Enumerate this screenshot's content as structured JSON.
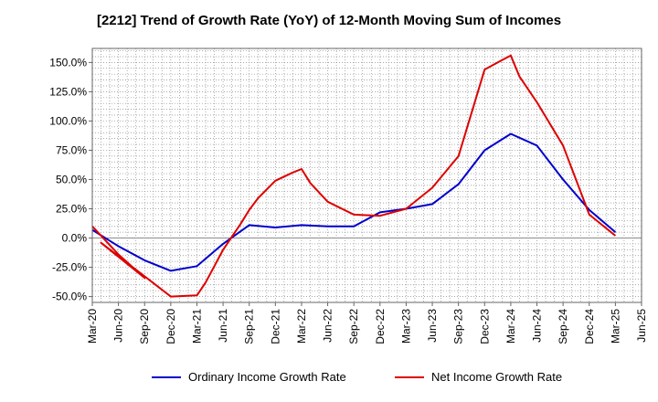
{
  "chart_data": {
    "type": "line",
    "title": "[2212]  Trend of Growth Rate (YoY) of 12-Month Moving Sum of Incomes",
    "xlabel": "",
    "ylabel": "",
    "x_tick_labels": [
      "Mar-20",
      "Jun-20",
      "Sep-20",
      "Dec-20",
      "Mar-21",
      "Jun-21",
      "Sep-21",
      "Dec-21",
      "Mar-22",
      "Jun-22",
      "Sep-22",
      "Dec-22",
      "Mar-23",
      "Jun-23",
      "Sep-23",
      "Dec-23",
      "Mar-24",
      "Jun-24",
      "Sep-24",
      "Dec-24",
      "Mar-25",
      "Jun-25"
    ],
    "y_ticks": [
      -50,
      -25,
      0,
      25,
      50,
      75,
      100,
      125,
      150
    ],
    "y_tick_labels": [
      "-50.0%",
      "-25.0%",
      "0.0%",
      "25.0%",
      "50.0%",
      "75.0%",
      "100.0%",
      "125.0%",
      "150.0%"
    ],
    "ylim": [
      -55,
      162
    ],
    "grid": true,
    "legend_position": "bottom",
    "series": [
      {
        "name": "Ordinary Income Growth Rate",
        "color": "#0000cc",
        "x": [
          "Mar-20",
          "Jun-20",
          "Sep-20",
          "Dec-20",
          "Mar-21",
          "Jun-21",
          "Sep-21",
          "Dec-21",
          "Mar-22",
          "Jun-22",
          "Sep-22",
          "Dec-22",
          "Mar-23",
          "Jun-23",
          "Sep-23",
          "Dec-23",
          "Mar-24",
          "Jun-24",
          "Sep-24",
          "Dec-24",
          "Mar-25"
        ],
        "values": [
          7,
          -7,
          -19,
          -28,
          -24,
          -5,
          11,
          9,
          11,
          10,
          10,
          22,
          25,
          29,
          46,
          75,
          89,
          79,
          50,
          24,
          5
        ]
      },
      {
        "name": "Net Income Growth Rate",
        "color": "#dd0000",
        "x": [
          "Mar-20",
          "Jun-20",
          "Sep-20",
          "Apr-20",
          "Dec-20",
          "Mar-21",
          "Apr-21",
          "Jun-21",
          "Aug-21",
          "Sep-21",
          "Oct-21",
          "Dec-21",
          "Feb-22",
          "Mar-22",
          "Apr-22",
          "Jun-22",
          "Sep-22",
          "Dec-22",
          "Mar-23",
          "Jun-23",
          "Sep-23",
          "Dec-23",
          "Feb-24",
          "Mar-24",
          "Apr-24",
          "Jun-24",
          "Sep-24",
          "Dec-24",
          "Mar-25"
        ],
        "values": [
          10,
          -14,
          -34,
          -4,
          -50,
          -49,
          -38,
          -10,
          12,
          24,
          34,
          49,
          56,
          59,
          47,
          31,
          20,
          19,
          25,
          43,
          70,
          144,
          152,
          156,
          138,
          116,
          79,
          20,
          2
        ]
      }
    ]
  }
}
